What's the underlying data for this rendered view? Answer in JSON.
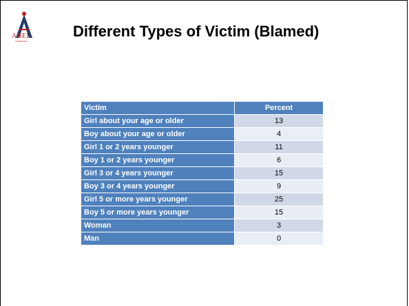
{
  "logo": {
    "name": "ABEL",
    "tagline": "SCREENING"
  },
  "title": "Different Types of Victim (Blamed)",
  "table": {
    "header": [
      "Victim",
      "Percent"
    ],
    "rows": [
      [
        "Girl about your age or older",
        13
      ],
      [
        "Boy about your age or older",
        4
      ],
      [
        "Girl 1 or 2 years younger",
        11
      ],
      [
        "Boy 1 or 2 years younger",
        6
      ],
      [
        "Girl 3 or 4 years younger",
        15
      ],
      [
        "Boy 3 or 4 years younger",
        9
      ],
      [
        "Girl 5 or more years younger",
        25
      ],
      [
        "Boy 5 or more years younger",
        15
      ],
      [
        "Woman",
        3
      ],
      [
        "Man",
        0
      ]
    ]
  }
}
